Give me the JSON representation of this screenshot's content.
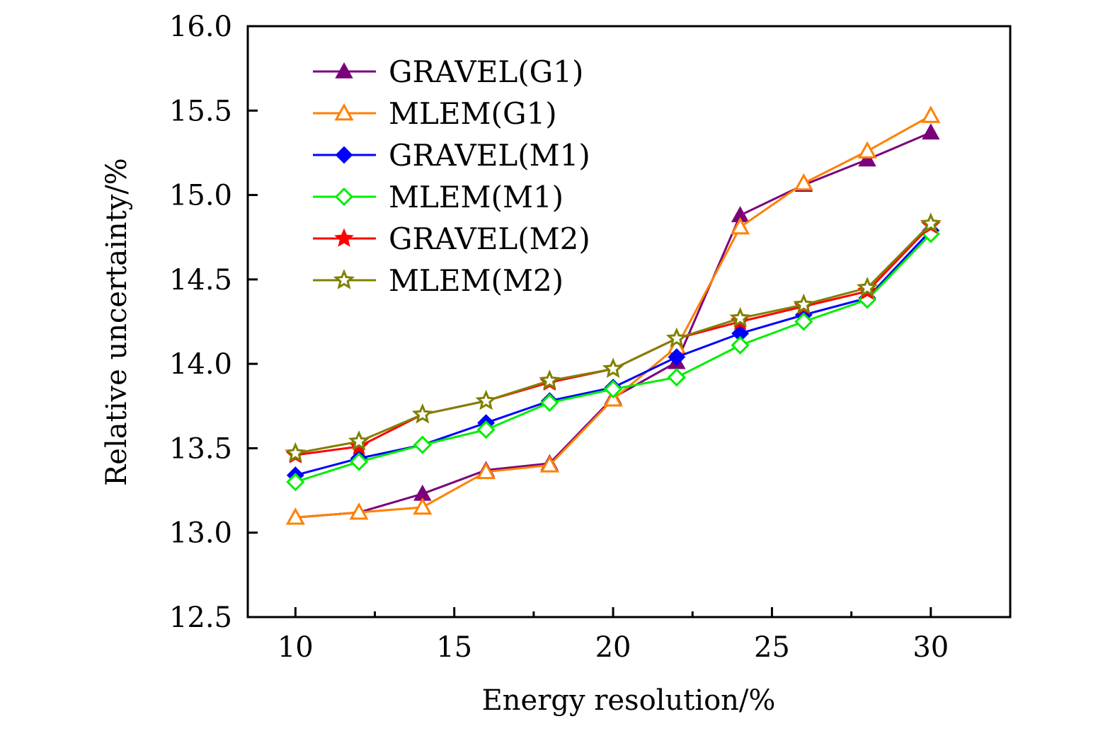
{
  "chart_data": {
    "type": "line",
    "title": "",
    "xlabel": "Energy resolution/%",
    "ylabel": "Relative uncertainty/%",
    "xlim": [
      8.5,
      32.5
    ],
    "ylim": [
      12.5,
      16.0
    ],
    "xticks": [
      10,
      15,
      20,
      25,
      30
    ],
    "xtick_labels": [
      "10",
      "15",
      "20",
      "25",
      "30"
    ],
    "xminor_ticks": [
      12.5,
      17.5,
      22.5,
      27.5
    ],
    "yticks": [
      12.5,
      13.0,
      13.5,
      14.0,
      14.5,
      15.0,
      15.5,
      16.0
    ],
    "ytick_labels": [
      "12.5",
      "13.0",
      "13.5",
      "14.0",
      "14.5",
      "15.0",
      "15.5",
      "16.0"
    ],
    "grid": false,
    "legend_position": "top-left",
    "x": [
      10,
      12,
      14,
      16,
      18,
      20,
      22,
      24,
      26,
      28,
      30
    ],
    "series": [
      {
        "name": "GRAVEL(G1)",
        "color": "#7b007b",
        "marker": "triangle-filled",
        "values": [
          13.09,
          13.12,
          13.23,
          13.37,
          13.41,
          13.8,
          14.01,
          14.88,
          15.06,
          15.21,
          15.37
        ]
      },
      {
        "name": "MLEM(G1)",
        "color": "#ff8000",
        "marker": "triangle-open",
        "values": [
          13.09,
          13.12,
          13.15,
          13.36,
          13.4,
          13.79,
          14.1,
          14.81,
          15.07,
          15.26,
          15.47
        ]
      },
      {
        "name": "GRAVEL(M1)",
        "color": "#0000ff",
        "marker": "diamond-filled",
        "values": [
          13.34,
          13.44,
          13.52,
          13.65,
          13.78,
          13.86,
          14.04,
          14.18,
          14.29,
          14.39,
          14.79
        ]
      },
      {
        "name": "MLEM(M1)",
        "color": "#00ee00",
        "marker": "diamond-open",
        "values": [
          13.3,
          13.42,
          13.52,
          13.61,
          13.77,
          13.85,
          13.92,
          14.11,
          14.25,
          14.38,
          14.77
        ]
      },
      {
        "name": "GRAVEL(M2)",
        "color": "#ff0000",
        "marker": "star-filled",
        "values": [
          13.46,
          13.51,
          13.7,
          13.78,
          13.89,
          13.97,
          14.15,
          14.25,
          14.34,
          14.43,
          14.82
        ]
      },
      {
        "name": "MLEM(M2)",
        "color": "#808000",
        "marker": "star-open",
        "values": [
          13.47,
          13.54,
          13.7,
          13.78,
          13.9,
          13.97,
          14.15,
          14.27,
          14.35,
          14.45,
          14.83
        ]
      }
    ]
  }
}
